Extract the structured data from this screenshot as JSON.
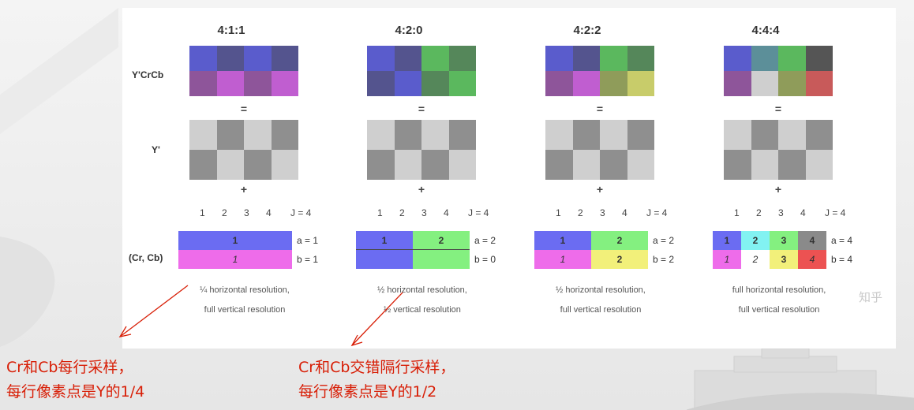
{
  "colors": {
    "annotation_red": "#d81e06",
    "chroma_blue": "#6b6cf2",
    "chroma_green": "#84f080",
    "chroma_magenta": "#ee6cea",
    "chroma_yellow": "#f2f07a",
    "chroma_cyan": "#82f2f2",
    "chroma_gray": "#8a8a8a",
    "chroma_red": "#ec5252",
    "luma_light": "#cfcfcf",
    "luma_dark": "#8f8f8f"
  },
  "rows": {
    "ycrcb_label": "Y'CrCb",
    "y_label": "Y'",
    "cr_cb_label": "(Cr, Cb)",
    "equals": "=",
    "plus": "+"
  },
  "columns": [
    {
      "title": "4:1:1",
      "ycrcb": [
        "#5a5ccc",
        "#54548e",
        "#5a5ccc",
        "#54548e",
        "#8e559a",
        "#c05ed0",
        "#8e559a",
        "#c05ed0"
      ],
      "j_numbers": [
        "1",
        "2",
        "3",
        "4"
      ],
      "j_label": "J = 4",
      "a_label": "a = 1",
      "b_label": "b = 1",
      "chroma_top": [
        {
          "text": "1",
          "color": "#6b6cf2",
          "span": 4
        }
      ],
      "chroma_bottom": [
        {
          "text": "1",
          "color": "#ee6cea",
          "span": 4,
          "italic": true
        }
      ],
      "caption_1": "¼ horizontal resolution,",
      "caption_2": "full vertical resolution"
    },
    {
      "title": "4:2:0",
      "ycrcb": [
        "#5a5ccc",
        "#54548e",
        "#5bb85e",
        "#55875a",
        "#54548e",
        "#5a5ccc",
        "#55875a",
        "#5bb85e"
      ],
      "j_numbers": [
        "1",
        "2",
        "3",
        "4"
      ],
      "j_label": "J = 4",
      "a_label": "a = 2",
      "b_label": "b = 0",
      "chroma_top": [
        {
          "text": "1",
          "color": "#6b6cf2",
          "span": 2
        },
        {
          "text": "2",
          "color": "#84f080",
          "span": 2
        }
      ],
      "chroma_bottom": [
        {
          "text": "",
          "color": "#6b6cf2",
          "span": 2
        },
        {
          "text": "",
          "color": "#84f080",
          "span": 2
        }
      ],
      "caption_1": "½ horizontal resolution,",
      "caption_2": "½ vertical resolution"
    },
    {
      "title": "4:2:2",
      "ycrcb": [
        "#5a5ccc",
        "#54548e",
        "#5bb85e",
        "#55875a",
        "#8e559a",
        "#c05ed0",
        "#8f9c5a",
        "#c8cc6a"
      ],
      "j_numbers": [
        "1",
        "2",
        "3",
        "4"
      ],
      "j_label": "J = 4",
      "a_label": "a = 2",
      "b_label": "b = 2",
      "chroma_top": [
        {
          "text": "1",
          "color": "#6b6cf2",
          "span": 2
        },
        {
          "text": "2",
          "color": "#84f080",
          "span": 2
        }
      ],
      "chroma_bottom": [
        {
          "text": "1",
          "color": "#ee6cea",
          "span": 2,
          "italic": true
        },
        {
          "text": "2",
          "color": "#f2f07a",
          "span": 2
        }
      ],
      "caption_1": "½ horizontal resolution,",
      "caption_2": "full vertical resolution"
    },
    {
      "title": "4:4:4",
      "ycrcb": [
        "#5a5ccc",
        "#5c8f99",
        "#5bb85e",
        "#555555",
        "#8e559a",
        "#cfcfcf",
        "#8f9c5a",
        "#c85a5a"
      ],
      "j_numbers": [
        "1",
        "2",
        "3",
        "4"
      ],
      "j_label": "J = 4",
      "a_label": "a = 4",
      "b_label": "b = 4",
      "chroma_top": [
        {
          "text": "1",
          "color": "#6b6cf2",
          "span": 1
        },
        {
          "text": "2",
          "color": "#82f2f2",
          "span": 1
        },
        {
          "text": "3",
          "color": "#84f080",
          "span": 1
        },
        {
          "text": "4",
          "color": "#8a8a8a",
          "span": 1
        }
      ],
      "chroma_bottom": [
        {
          "text": "1",
          "color": "#ee6cea",
          "span": 1,
          "italic": true
        },
        {
          "text": "2",
          "color": "#ffffff",
          "span": 1,
          "italic": true
        },
        {
          "text": "3",
          "color": "#f2f07a",
          "span": 1
        },
        {
          "text": "4",
          "color": "#ec5252",
          "span": 1,
          "italic": true
        }
      ],
      "caption_1": "full horizontal resolution,",
      "caption_2": "full vertical resolution"
    }
  ],
  "annotations": {
    "left_line_1": "Cr和Cb每行采样，",
    "left_line_2": "每行像素点是Y的1/4",
    "right_line_1": "Cr和Cb交错隔行采样，",
    "right_line_2": "每行像素点是Y的1/2"
  },
  "watermark": "知乎"
}
